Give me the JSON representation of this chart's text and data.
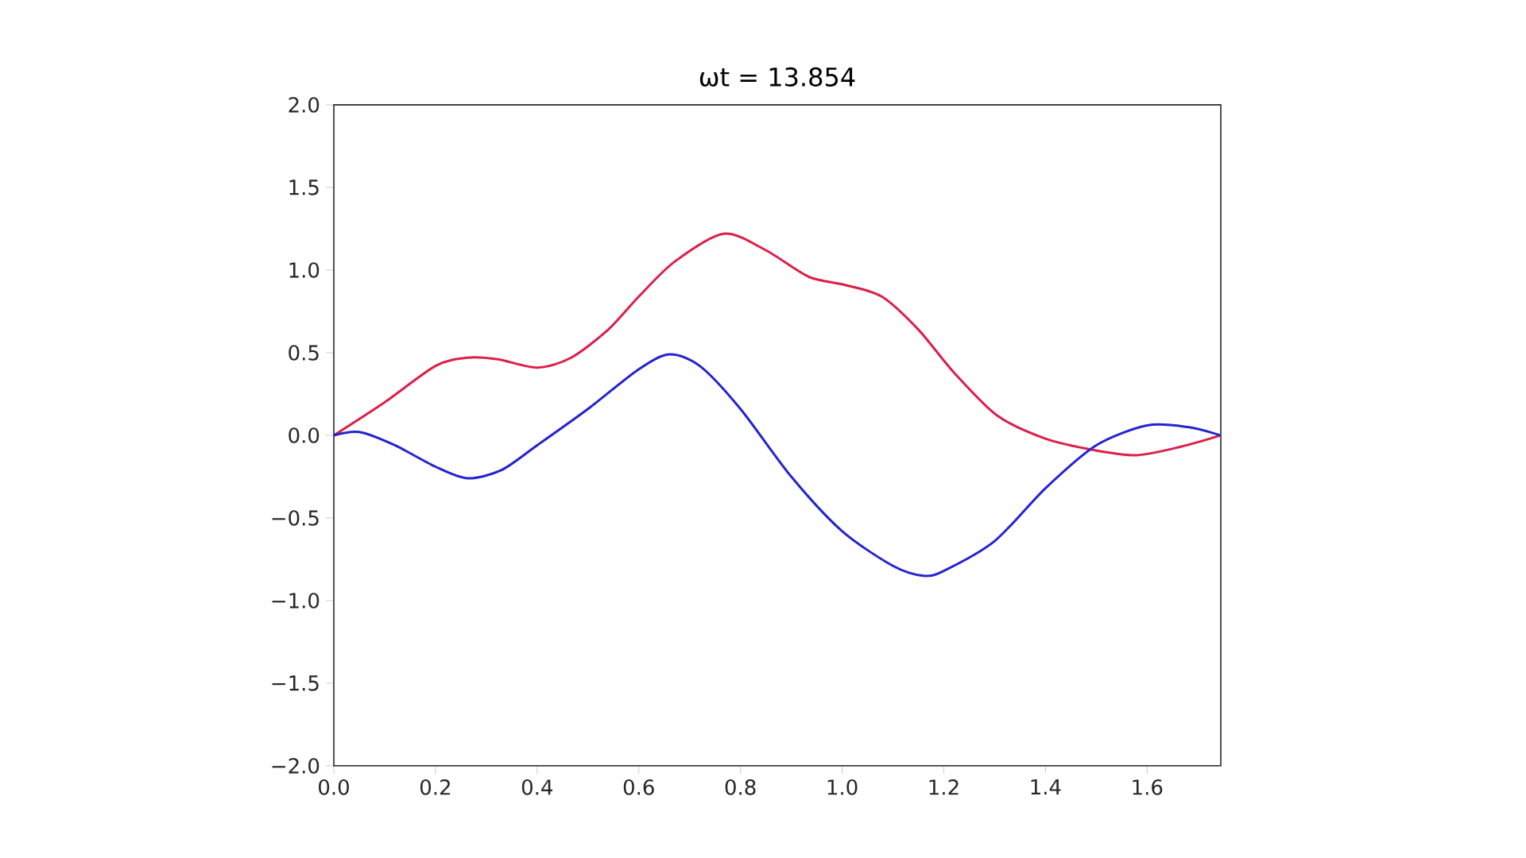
{
  "chart_data": {
    "type": "line",
    "title": "ωt = 13.854",
    "xlim": [
      0,
      1.745
    ],
    "ylim": [
      -2.0,
      2.0
    ],
    "xticks": [
      {
        "value": 0,
        "label": "0.0"
      },
      0.2,
      0.4,
      0.6,
      0.8,
      {
        "value": 1,
        "label": "1.0"
      },
      1.2,
      1.4,
      1.6
    ],
    "yticks": [
      {
        "value": -2,
        "label": "−2.0"
      },
      {
        "value": -1.5,
        "label": "−1.5"
      },
      {
        "value": -1,
        "label": "−1.0"
      },
      {
        "value": -0.5,
        "label": "−0.5"
      },
      {
        "value": 0,
        "label": "0.0"
      },
      0.5,
      {
        "value": 1,
        "label": "1.0"
      },
      1.5,
      {
        "value": 2,
        "label": "2.0"
      }
    ],
    "grid": false,
    "marker": "none",
    "line_style": "solid",
    "series": [
      {
        "color": "#dc1f48",
        "x": [
          0,
          0.1,
          0.2,
          0.263,
          0.323,
          0.4,
          0.467,
          0.54,
          0.6,
          0.67,
          0.767,
          0.85,
          0.934,
          1.006,
          1.078,
          1.15,
          1.22,
          1.305,
          1.4,
          1.497,
          1.58,
          1.665,
          1.745
        ],
        "values": [
          0,
          0.2,
          0.42,
          0.47,
          0.46,
          0.41,
          0.47,
          0.64,
          0.84,
          1.05,
          1.22,
          1.12,
          0.96,
          0.91,
          0.84,
          0.64,
          0.38,
          0.12,
          -0.02,
          -0.09,
          -0.12,
          -0.07,
          0
        ]
      },
      {
        "color": "#2323d2",
        "x": [
          0,
          0.05,
          0.12,
          0.2,
          0.263,
          0.33,
          0.4,
          0.5,
          0.6,
          0.66,
          0.72,
          0.8,
          0.9,
          1.0,
          1.1,
          1.16,
          1.2,
          1.3,
          1.4,
          1.5,
          1.6,
          1.68,
          1.745
        ],
        "values": [
          0,
          0.02,
          -0.06,
          -0.19,
          -0.26,
          -0.21,
          -0.06,
          0.16,
          0.4,
          0.49,
          0.42,
          0.16,
          -0.25,
          -0.58,
          -0.79,
          -0.85,
          -0.82,
          -0.64,
          -0.32,
          -0.06,
          0.06,
          0.05,
          0
        ]
      }
    ]
  }
}
